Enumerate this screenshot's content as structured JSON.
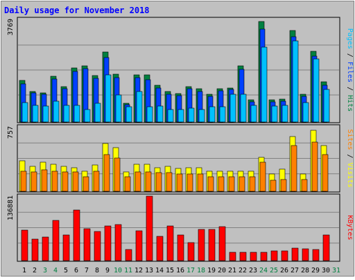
{
  "chart_data": {
    "type": "bar",
    "title": "Daily usage for November 2018",
    "categories": [
      "1",
      "2",
      "3",
      "4",
      "5",
      "6",
      "7",
      "8",
      "9",
      "10",
      "11",
      "12",
      "13",
      "14",
      "15",
      "16",
      "17",
      "18",
      "19",
      "20",
      "21",
      "22",
      "23",
      "24",
      "25",
      "26",
      "27",
      "28",
      "29",
      "30",
      "31"
    ],
    "weekend_days": [
      "3",
      "4",
      "10",
      "11",
      "17",
      "18",
      "24",
      "25",
      "31"
    ],
    "panels": [
      {
        "id": "hits-files-pages",
        "ymax": 3769,
        "ymax_label": "3769",
        "right_labels": [
          {
            "text": "Pages",
            "color": "#00c0ff"
          },
          {
            "text": "/",
            "color": "#000000"
          },
          {
            "text": "Files",
            "color": "#0040ff"
          },
          {
            "text": "/",
            "color": "#000000"
          },
          {
            "text": "Hits",
            "color": "#008040"
          }
        ],
        "series": [
          {
            "name": "Hits",
            "color": "#008040",
            "values": [
              1520,
              1120,
              1080,
              1680,
              1300,
              1980,
              2070,
              1700,
              2580,
              1760,
              700,
              1730,
              1730,
              1360,
              1120,
              1040,
              1310,
              1210,
              1010,
              1230,
              1260,
              2070,
              820,
              3690,
              820,
              830,
              3370,
              1030,
              2600,
              1480,
              0
            ]
          },
          {
            "name": "Files",
            "color": "#0040ff",
            "values": [
              1410,
              1060,
              1010,
              1570,
              1210,
              1850,
              1950,
              1600,
              2380,
              1640,
              630,
              1620,
              1560,
              1250,
              1030,
              960,
              1220,
              1120,
              940,
              1150,
              1190,
              1930,
              730,
              3420,
              740,
              770,
              3130,
              940,
              2420,
              1350,
              0
            ]
          },
          {
            "name": "Pages",
            "color": "#00c0ff",
            "values": [
              710,
              610,
              590,
              770,
              600,
              610,
              460,
              680,
              1740,
              990,
              550,
              1130,
              560,
              580,
              450,
              460,
              510,
              470,
              560,
              560,
              1020,
              1030,
              600,
              2760,
              580,
              600,
              2980,
              720,
              2320,
              1190,
              0
            ]
          }
        ]
      },
      {
        "id": "visits-sites",
        "ymax": 757,
        "ymax_label": "757",
        "right_labels": [
          {
            "text": "Sites",
            "color": "#ff8000"
          },
          {
            "text": "/",
            "color": "#000000"
          },
          {
            "text": "Visits",
            "color": "#ffff00"
          }
        ],
        "series": [
          {
            "name": "Visits",
            "color": "#ffff00",
            "values": [
              360,
              290,
              340,
              320,
              290,
              280,
              240,
              310,
              560,
              510,
              230,
              320,
              320,
              280,
              290,
              270,
              280,
              280,
              240,
              240,
              240,
              240,
              240,
              400,
              200,
              260,
              640,
              200,
              720,
              540,
              0
            ]
          },
          {
            "name": "Sites",
            "color": "#ff8000",
            "values": [
              240,
              230,
              250,
              240,
              230,
              230,
              170,
              240,
              430,
              390,
              170,
              230,
              230,
              220,
              220,
              200,
              200,
              200,
              170,
              170,
              170,
              170,
              170,
              340,
              130,
              140,
              540,
              140,
              580,
              430,
              0
            ]
          }
        ]
      },
      {
        "id": "kbytes",
        "ymax": 136881,
        "ymax_label": "136881",
        "right_labels": [
          {
            "text": "KBytes",
            "color": "#ff0000"
          }
        ],
        "series": [
          {
            "name": "KBytes",
            "color": "#ff0000",
            "values": [
              65000,
              46000,
              50000,
              86000,
              54000,
              108000,
              67000,
              62000,
              73000,
              77000,
              23000,
              64000,
              136881,
              52000,
              74000,
              54000,
              39000,
              66000,
              66000,
              72000,
              18000,
              17000,
              18000,
              18000,
              20000,
              20000,
              27000,
              25000,
              23000,
              55000,
              0
            ]
          }
        ]
      }
    ]
  }
}
